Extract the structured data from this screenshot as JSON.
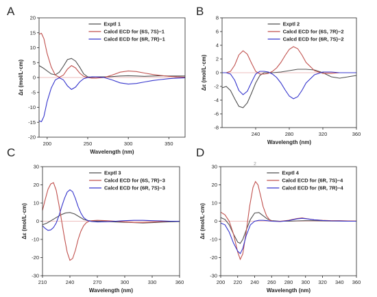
{
  "figure": {
    "panel_letters": [
      "A",
      "B",
      "C",
      "D"
    ],
    "stray_mark": "2"
  },
  "chart_data": [
    {
      "type": "line",
      "panel": "A",
      "xlabel": "Wavelength (nm)",
      "ylabel": "Δε (mol/L·cm)",
      "xlim": [
        190,
        370
      ],
      "ylim": [
        -20,
        20
      ],
      "xticks": [
        200,
        250,
        300,
        350
      ],
      "yticks": [
        20,
        15,
        10,
        5,
        0,
        -5,
        -10,
        -15,
        -20
      ],
      "zero_line": true,
      "legend": "top-right",
      "series": [
        {
          "name": "Exptl 1",
          "color": "#4d4d4d",
          "x": [
            190,
            195,
            200,
            205,
            210,
            215,
            220,
            225,
            230,
            235,
            240,
            245,
            250,
            255,
            260,
            270,
            280,
            290,
            300,
            310,
            320,
            330,
            340,
            350,
            360,
            370
          ],
          "y": [
            4,
            3.2,
            2.2,
            1.2,
            0.9,
            1.8,
            3.8,
            6,
            6.4,
            5.5,
            3.5,
            1.2,
            0.2,
            0.1,
            0.2,
            0.2,
            0.3,
            0.5,
            0.6,
            0.5,
            0.4,
            0.5,
            0.6,
            0.5,
            0.5,
            0.5
          ]
        },
        {
          "name": "Calcd ECD for (6S, 7S)−1",
          "color": "#c0504d",
          "x": [
            190,
            193,
            196,
            200,
            205,
            210,
            215,
            220,
            225,
            230,
            235,
            240,
            245,
            250,
            255,
            260,
            270,
            280,
            290,
            300,
            310,
            320,
            330,
            340,
            350,
            360,
            370
          ],
          "y": [
            14.5,
            14.8,
            13,
            8,
            3.5,
            0.8,
            0.1,
            0.8,
            2.8,
            4,
            3.2,
            1.5,
            0.4,
            0,
            -0.2,
            -0.2,
            0,
            0.8,
            1.8,
            2.2,
            2,
            1.5,
            1,
            0.7,
            0.4,
            0.2,
            0.1
          ]
        },
        {
          "name": "Calcd ECD for (6R, 7R)−1",
          "color": "#3333cc",
          "x": [
            190,
            193,
            196,
            200,
            205,
            210,
            215,
            220,
            225,
            230,
            235,
            240,
            245,
            250,
            255,
            260,
            270,
            280,
            290,
            300,
            310,
            320,
            330,
            340,
            350,
            360,
            370
          ],
          "y": [
            -14.5,
            -14.8,
            -13,
            -8,
            -3.5,
            -0.8,
            -0.1,
            -0.8,
            -2.8,
            -4,
            -3.2,
            -1.5,
            -0.4,
            0,
            0.2,
            0.2,
            0,
            -0.8,
            -1.8,
            -2.2,
            -2,
            -1.5,
            -1,
            -0.7,
            -0.4,
            -0.2,
            -0.1
          ]
        }
      ]
    },
    {
      "type": "line",
      "panel": "B",
      "xlabel": "Wavelength (nm)",
      "ylabel": "Δε (mol/L·cm)",
      "xlim": [
        200,
        360
      ],
      "ylim": [
        -8,
        8
      ],
      "xticks": [
        240,
        280,
        320,
        360
      ],
      "yticks": [
        8,
        6,
        4,
        2,
        0,
        -2,
        -4,
        -6,
        -8
      ],
      "zero_line": true,
      "legend": "top-right",
      "series": [
        {
          "name": "Exptl 2",
          "color": "#4d4d4d",
          "x": [
            200,
            205,
            210,
            215,
            220,
            225,
            230,
            235,
            240,
            245,
            250,
            255,
            260,
            270,
            280,
            290,
            300,
            310,
            320,
            330,
            340,
            350,
            360
          ],
          "y": [
            -2.2,
            -2,
            -2.6,
            -3.8,
            -4.9,
            -5.1,
            -4.4,
            -3,
            -1.5,
            -0.4,
            0,
            0,
            0,
            0.1,
            0.3,
            0.5,
            0.5,
            0.4,
            0,
            -0.6,
            -0.8,
            -0.6,
            -0.4
          ]
        },
        {
          "name": "Calcd ECD for (6S, 7R)−2",
          "color": "#c0504d",
          "x": [
            200,
            205,
            210,
            215,
            220,
            225,
            230,
            235,
            240,
            245,
            250,
            255,
            260,
            265,
            270,
            275,
            280,
            285,
            290,
            295,
            300,
            310,
            320,
            330,
            340,
            350,
            360
          ],
          "y": [
            0,
            0,
            0.2,
            1.1,
            2.6,
            3.2,
            2.7,
            1.4,
            0.2,
            -0.2,
            -0.2,
            -0.1,
            0.2,
            0.7,
            1.5,
            2.5,
            3.4,
            3.8,
            3.5,
            2.6,
            1.5,
            0.3,
            -0.1,
            -0.1,
            0,
            0,
            0
          ]
        },
        {
          "name": "Calcd ECD for (6R, 7S)−2",
          "color": "#3333cc",
          "x": [
            200,
            205,
            210,
            215,
            220,
            225,
            230,
            235,
            240,
            245,
            250,
            255,
            260,
            265,
            270,
            275,
            280,
            285,
            290,
            295,
            300,
            310,
            320,
            330,
            340,
            350,
            360
          ],
          "y": [
            0,
            0,
            -0.2,
            -1.1,
            -2.6,
            -3.2,
            -2.7,
            -1.4,
            -0.2,
            0.2,
            0.2,
            0.1,
            -0.2,
            -0.7,
            -1.5,
            -2.5,
            -3.4,
            -3.8,
            -3.5,
            -2.6,
            -1.5,
            -0.3,
            0.1,
            0.1,
            0,
            0,
            0
          ]
        }
      ]
    },
    {
      "type": "line",
      "panel": "C",
      "xlabel": "Wavelength (nm)",
      "ylabel": "Δε (mol/L·cm)",
      "xlim": [
        210,
        360
      ],
      "ylim": [
        -30,
        30
      ],
      "xticks": [
        210,
        240,
        270,
        300,
        330,
        360
      ],
      "yticks": [
        30,
        20,
        10,
        0,
        -10,
        -20,
        -30
      ],
      "zero_line": true,
      "legend": "top-right",
      "series": [
        {
          "name": "Exptl 3",
          "color": "#4d4d4d",
          "x": [
            210,
            215,
            220,
            225,
            230,
            235,
            240,
            245,
            250,
            255,
            260,
            270,
            280,
            290,
            300,
            310,
            320,
            330,
            340,
            350,
            360
          ],
          "y": [
            -2,
            -1,
            0.5,
            2,
            3.5,
            4.5,
            4.8,
            4,
            2.5,
            1,
            0.3,
            0,
            -0.2,
            -0.4,
            -0.6,
            -0.8,
            -1,
            -0.8,
            -0.5,
            -0.3,
            -0.2
          ]
        },
        {
          "name": "Calcd ECD for (6S, 7R)−3",
          "color": "#c0504d",
          "x": [
            210,
            213,
            216,
            219,
            222,
            225,
            228,
            231,
            234,
            237,
            240,
            243,
            246,
            249,
            252,
            255,
            258,
            261,
            264,
            270,
            280,
            290,
            300,
            310,
            320,
            330,
            340,
            350,
            360
          ],
          "y": [
            6,
            12,
            17.5,
            20.5,
            21.2,
            17,
            9,
            0,
            -9,
            -17,
            -21.5,
            -20.5,
            -16,
            -10,
            -5.5,
            -2.5,
            -0.8,
            0,
            0.3,
            0.5,
            0.3,
            0,
            -0.4,
            -0.7,
            -0.7,
            -0.5,
            -0.2,
            0,
            0
          ]
        },
        {
          "name": "Calcd ECD for (6R, 7S)−3",
          "color": "#3333cc",
          "x": [
            210,
            213,
            216,
            219,
            222,
            225,
            228,
            231,
            234,
            237,
            240,
            243,
            246,
            249,
            252,
            255,
            258,
            261,
            264,
            270,
            280,
            290,
            300,
            310,
            320,
            330,
            340,
            350,
            360
          ],
          "y": [
            -2.5,
            -4,
            -5,
            -4.8,
            -3.5,
            -1,
            3,
            8,
            12.5,
            16,
            17.3,
            16.2,
            12.5,
            8,
            4.5,
            2,
            0.8,
            0.1,
            -0.2,
            -0.4,
            -0.3,
            0,
            0.3,
            0.5,
            0.5,
            0.3,
            0.2,
            0,
            0
          ]
        }
      ]
    },
    {
      "type": "line",
      "panel": "D",
      "xlabel": "Wavelength (nm)",
      "ylabel": "Δε (mol/L·cm)",
      "xlim": [
        200,
        360
      ],
      "ylim": [
        -30,
        30
      ],
      "xticks": [
        200,
        220,
        240,
        260,
        280,
        300,
        320,
        340,
        360
      ],
      "yticks": [
        30,
        20,
        10,
        0,
        -10,
        -20,
        -30
      ],
      "zero_line": true,
      "legend": "top-right",
      "series": [
        {
          "name": "Exptl 4",
          "color": "#4d4d4d",
          "x": [
            200,
            205,
            210,
            215,
            220,
            223,
            226,
            230,
            235,
            240,
            245,
            250,
            255,
            260,
            270,
            280,
            290,
            300,
            310,
            320,
            330,
            340,
            350,
            360
          ],
          "y": [
            2,
            1,
            -2,
            -7,
            -11.5,
            -12.2,
            -10,
            -5,
            1,
            4.5,
            4.8,
            3,
            1.2,
            0.3,
            0,
            0,
            0.2,
            0.3,
            0.3,
            0.2,
            0.1,
            0.1,
            0,
            0
          ]
        },
        {
          "name": "Calcd ECD for (6R, 7S)−4",
          "color": "#c0504d",
          "x": [
            200,
            205,
            210,
            215,
            220,
            223,
            226,
            230,
            234,
            238,
            241,
            244,
            247,
            250,
            254,
            258,
            262,
            270,
            280,
            290,
            296,
            300,
            310,
            320,
            330,
            340,
            350,
            360
          ],
          "y": [
            5,
            3.5,
            0,
            -7,
            -17,
            -21,
            -18,
            -6,
            8,
            18.5,
            21.8,
            20,
            14,
            8,
            3,
            0.5,
            0,
            0,
            0.5,
            1.5,
            1.8,
            1.5,
            0.8,
            0.5,
            0.3,
            0.3,
            0.2,
            0.1
          ]
        },
        {
          "name": "Calcd ECD for (6R, 7R)−4",
          "color": "#3333cc",
          "x": [
            200,
            205,
            210,
            215,
            220,
            223,
            226,
            230,
            235,
            240,
            245,
            250,
            255,
            260,
            270,
            280,
            290,
            296,
            300,
            310,
            320,
            330,
            340,
            350,
            360
          ],
          "y": [
            -1,
            -2,
            -6,
            -12,
            -16.5,
            -17.8,
            -15,
            -8,
            -2,
            0,
            0.5,
            0.5,
            0.3,
            0,
            -0.2,
            0.3,
            1.3,
            1.6,
            1.4,
            0.8,
            0.4,
            0.2,
            0.1,
            0,
            0
          ]
        }
      ]
    }
  ]
}
